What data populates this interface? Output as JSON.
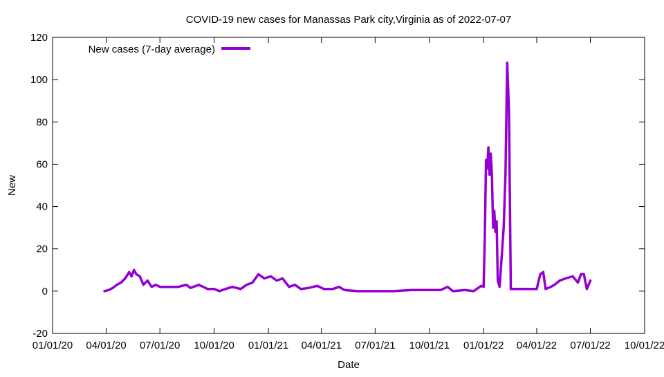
{
  "chart_data": {
    "type": "line",
    "title": "COVID-19 new cases for Manassas Park city,Virginia as of 2022-07-07",
    "xlabel": "Date",
    "ylabel": "New",
    "ylim": [
      -20,
      120
    ],
    "yticks": [
      -20,
      0,
      20,
      40,
      60,
      80,
      100,
      120
    ],
    "xlim": [
      "2020-01-01",
      "2022-10-01"
    ],
    "xticks": [
      {
        "date": "2020-01-01",
        "label": "01/01/20"
      },
      {
        "date": "2020-04-01",
        "label": "04/01/20"
      },
      {
        "date": "2020-07-01",
        "label": "07/01/20"
      },
      {
        "date": "2020-10-01",
        "label": "10/01/20"
      },
      {
        "date": "2021-01-01",
        "label": "01/01/21"
      },
      {
        "date": "2021-04-01",
        "label": "04/01/21"
      },
      {
        "date": "2021-07-01",
        "label": "07/01/21"
      },
      {
        "date": "2021-10-01",
        "label": "10/01/21"
      },
      {
        "date": "2022-01-01",
        "label": "01/01/22"
      },
      {
        "date": "2022-04-01",
        "label": "04/01/22"
      },
      {
        "date": "2022-07-01",
        "label": "07/01/22"
      },
      {
        "date": "2022-10-01",
        "label": "10/01/22"
      }
    ],
    "legend": {
      "label": "New cases (7-day average)",
      "position": "top-left"
    },
    "series": [
      {
        "name": "New cases (7-day average)",
        "color": "#9400d3",
        "points": [
          [
            "2020-03-29",
            0
          ],
          [
            "2020-04-05",
            0.5
          ],
          [
            "2020-04-12",
            1.5
          ],
          [
            "2020-04-19",
            3
          ],
          [
            "2020-04-26",
            4
          ],
          [
            "2020-05-03",
            6
          ],
          [
            "2020-05-10",
            9
          ],
          [
            "2020-05-14",
            7
          ],
          [
            "2020-05-18",
            10
          ],
          [
            "2020-05-22",
            8
          ],
          [
            "2020-05-28",
            7
          ],
          [
            "2020-06-03",
            3
          ],
          [
            "2020-06-10",
            5
          ],
          [
            "2020-06-17",
            2
          ],
          [
            "2020-06-24",
            3
          ],
          [
            "2020-07-01",
            2
          ],
          [
            "2020-07-15",
            2
          ],
          [
            "2020-08-01",
            2
          ],
          [
            "2020-08-15",
            3
          ],
          [
            "2020-08-22",
            1.5
          ],
          [
            "2020-09-05",
            3
          ],
          [
            "2020-09-20",
            1
          ],
          [
            "2020-10-01",
            1
          ],
          [
            "2020-10-10",
            0
          ],
          [
            "2020-10-20",
            1
          ],
          [
            "2020-11-01",
            2
          ],
          [
            "2020-11-15",
            1
          ],
          [
            "2020-11-25",
            3
          ],
          [
            "2020-12-05",
            4
          ],
          [
            "2020-12-15",
            8
          ],
          [
            "2020-12-25",
            6
          ],
          [
            "2021-01-05",
            7
          ],
          [
            "2021-01-15",
            5
          ],
          [
            "2021-01-25",
            6
          ],
          [
            "2021-02-05",
            2
          ],
          [
            "2021-02-15",
            3
          ],
          [
            "2021-02-25",
            1
          ],
          [
            "2021-03-10",
            1.5
          ],
          [
            "2021-03-25",
            2.5
          ],
          [
            "2021-04-05",
            1
          ],
          [
            "2021-04-20",
            1
          ],
          [
            "2021-05-01",
            2
          ],
          [
            "2021-05-10",
            0.5
          ],
          [
            "2021-06-01",
            0
          ],
          [
            "2021-07-01",
            0
          ],
          [
            "2021-08-01",
            0
          ],
          [
            "2021-09-01",
            0.5
          ],
          [
            "2021-10-01",
            0.5
          ],
          [
            "2021-10-20",
            0.5
          ],
          [
            "2021-11-01",
            2
          ],
          [
            "2021-11-10",
            0
          ],
          [
            "2021-12-01",
            0.5
          ],
          [
            "2021-12-15",
            0
          ],
          [
            "2021-12-28",
            2.5
          ],
          [
            "2022-01-01",
            2
          ],
          [
            "2022-01-03",
            25
          ],
          [
            "2022-01-05",
            62
          ],
          [
            "2022-01-07",
            58
          ],
          [
            "2022-01-09",
            68
          ],
          [
            "2022-01-11",
            55
          ],
          [
            "2022-01-13",
            65
          ],
          [
            "2022-01-15",
            55
          ],
          [
            "2022-01-17",
            30
          ],
          [
            "2022-01-19",
            38
          ],
          [
            "2022-01-21",
            28
          ],
          [
            "2022-01-23",
            33
          ],
          [
            "2022-01-25",
            5
          ],
          [
            "2022-01-28",
            2
          ],
          [
            "2022-02-01",
            18
          ],
          [
            "2022-02-04",
            30
          ],
          [
            "2022-02-07",
            55
          ],
          [
            "2022-02-10",
            108
          ],
          [
            "2022-02-13",
            85
          ],
          [
            "2022-02-16",
            1
          ],
          [
            "2022-03-01",
            1
          ],
          [
            "2022-03-15",
            1
          ],
          [
            "2022-04-01",
            1
          ],
          [
            "2022-04-07",
            8
          ],
          [
            "2022-04-12",
            9
          ],
          [
            "2022-04-16",
            1
          ],
          [
            "2022-04-25",
            2
          ],
          [
            "2022-05-01",
            3
          ],
          [
            "2022-05-10",
            5
          ],
          [
            "2022-05-20",
            6
          ],
          [
            "2022-06-01",
            7
          ],
          [
            "2022-06-10",
            4
          ],
          [
            "2022-06-15",
            8
          ],
          [
            "2022-06-20",
            8
          ],
          [
            "2022-06-25",
            1
          ],
          [
            "2022-07-01",
            5
          ]
        ]
      }
    ]
  }
}
